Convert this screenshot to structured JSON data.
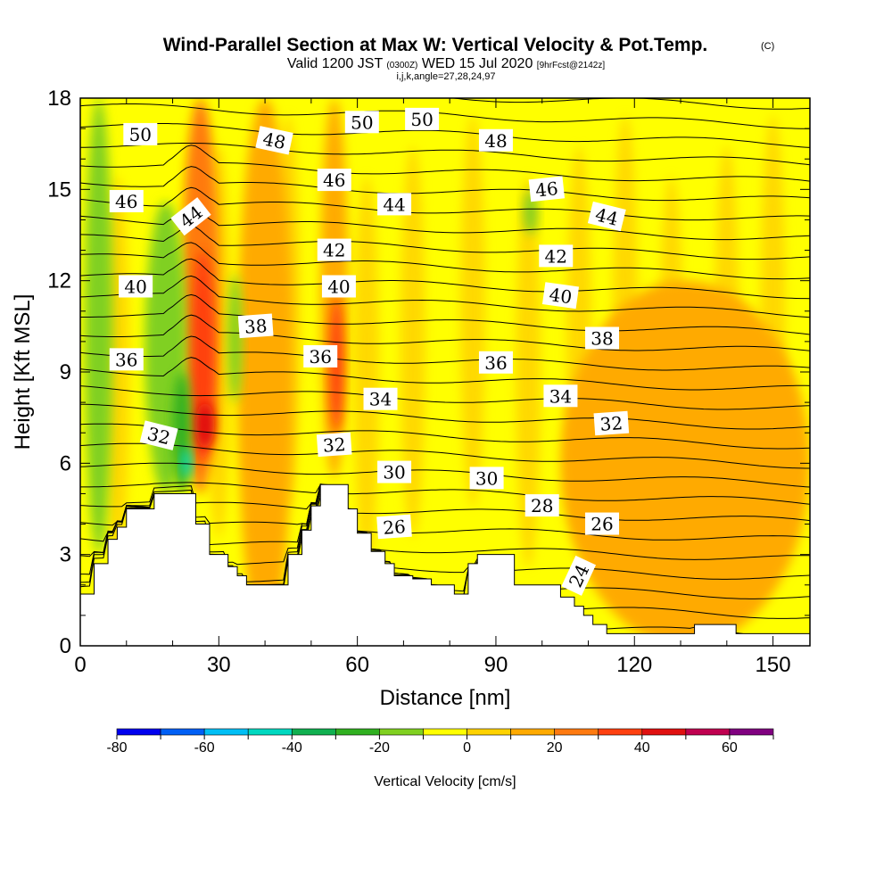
{
  "chart_data": {
    "type": "heatmap",
    "title": "Wind-Parallel Section at Max W: Vertical Velocity & Pot.Temp.",
    "title_tag": "(C)",
    "subtitle_parts": [
      "Valid 1200 JST ",
      "(0300Z)",
      " WED 15 Jul 2020 ",
      "[9hrFcst@2142z]"
    ],
    "subtitle2": "i,j,k,angle=27,28,24,97",
    "xlabel": "Distance [nm]",
    "ylabel": "Height [Kft MSL]",
    "xlim": [
      0,
      158
    ],
    "ylim": [
      0,
      18
    ],
    "xticks": [
      "0",
      "30",
      "60",
      "90",
      "120",
      "150"
    ],
    "yticks": [
      "0",
      "3",
      "6",
      "9",
      "12",
      "15",
      "18"
    ],
    "colorbar": {
      "label": "Vertical Velocity [cm/s]",
      "bounds": [
        -80,
        70
      ],
      "tick_values": [
        "-80",
        "-60",
        "-40",
        "-20",
        "0",
        "20",
        "40",
        "60"
      ],
      "colors": [
        "#0000ee",
        "#005ff5",
        "#00bff5",
        "#00d8c0",
        "#10b050",
        "#30b020",
        "#80d020",
        "#ffff00",
        "#ffd200",
        "#ffaa00",
        "#ff7a10",
        "#ff4010",
        "#e01010",
        "#c00050",
        "#800080"
      ]
    },
    "background_level_color": "#ffff00",
    "updraft_regions": [
      {
        "x": [
          34,
          46
        ],
        "y": [
          0,
          18
        ],
        "vv_cm_s": 10
      },
      {
        "x": [
          22,
          30
        ],
        "y": [
          5,
          18
        ],
        "vv_cm_s": 20
      },
      {
        "x": [
          24,
          29
        ],
        "y": [
          6,
          13
        ],
        "vv_cm_s": 35
      },
      {
        "x": [
          25,
          29
        ],
        "y": [
          6.5,
          8
        ],
        "vv_cm_s": 45
      },
      {
        "x": [
          52,
          58
        ],
        "y": [
          5.5,
          18
        ],
        "vv_cm_s": 15
      },
      {
        "x": [
          54,
          57
        ],
        "y": [
          7,
          11.5
        ],
        "vv_cm_s": 35
      },
      {
        "x": [
          104,
          158
        ],
        "y": [
          0,
          12
        ],
        "vv_cm_s": 10
      }
    ],
    "downdraft_regions": [
      {
        "x": [
          1,
          7
        ],
        "y": [
          3,
          18
        ],
        "vv_cm_s": -15
      },
      {
        "x": [
          14,
          23
        ],
        "y": [
          5,
          14.6
        ],
        "vv_cm_s": -15
      },
      {
        "x": [
          20,
          24
        ],
        "y": [
          5,
          9
        ],
        "vv_cm_s": -30
      },
      {
        "x": [
          22,
          24
        ],
        "y": [
          5.5,
          6.5
        ],
        "vv_cm_s": -45
      },
      {
        "x": [
          32,
          35
        ],
        "y": [
          8,
          12.2
        ],
        "vv_cm_s": -15
      },
      {
        "x": [
          96,
          99
        ],
        "y": [
          13.5,
          15
        ],
        "vv_cm_s": -15
      }
    ],
    "terrain_top_kft": [
      [
        0,
        1.7
      ],
      [
        3,
        1.7
      ],
      [
        3,
        2.7
      ],
      [
        6,
        2.7
      ],
      [
        6,
        3.5
      ],
      [
        8,
        3.5
      ],
      [
        8,
        3.9
      ],
      [
        10,
        3.9
      ],
      [
        10,
        4.5
      ],
      [
        16,
        4.5
      ],
      [
        16,
        5.0
      ],
      [
        25,
        5.0
      ],
      [
        25,
        4.0
      ],
      [
        28,
        4.0
      ],
      [
        28,
        3.0
      ],
      [
        32,
        3.0
      ],
      [
        32,
        2.6
      ],
      [
        34,
        2.6
      ],
      [
        34,
        2.3
      ],
      [
        36,
        2.3
      ],
      [
        36,
        2.0
      ],
      [
        45,
        2.0
      ],
      [
        45,
        3.0
      ],
      [
        48,
        3.0
      ],
      [
        48,
        3.8
      ],
      [
        50,
        3.8
      ],
      [
        50,
        4.6
      ],
      [
        52,
        4.6
      ],
      [
        52,
        5.3
      ],
      [
        58,
        5.3
      ],
      [
        58,
        4.5
      ],
      [
        60,
        4.5
      ],
      [
        60,
        3.7
      ],
      [
        63,
        3.7
      ],
      [
        63,
        3.1
      ],
      [
        66,
        3.1
      ],
      [
        66,
        2.7
      ],
      [
        68,
        2.7
      ],
      [
        68,
        2.3
      ],
      [
        72,
        2.3
      ],
      [
        72,
        2.2
      ],
      [
        76,
        2.2
      ],
      [
        76,
        2.0
      ],
      [
        81,
        2.0
      ],
      [
        81,
        1.7
      ],
      [
        84,
        1.7
      ],
      [
        84,
        2.7
      ],
      [
        86,
        2.7
      ],
      [
        86,
        3.0
      ],
      [
        94,
        3.0
      ],
      [
        94,
        2.0
      ],
      [
        104,
        2.0
      ],
      [
        104,
        1.6
      ],
      [
        107,
        1.6
      ],
      [
        107,
        1.3
      ],
      [
        109,
        1.3
      ],
      [
        109,
        1.0
      ],
      [
        111,
        1.0
      ],
      [
        111,
        0.7
      ],
      [
        114,
        0.7
      ],
      [
        114,
        0.4
      ],
      [
        133,
        0.4
      ],
      [
        133,
        0.7
      ],
      [
        142,
        0.7
      ],
      [
        142,
        0.4
      ],
      [
        158,
        0.4
      ]
    ],
    "theta_contour_labels": [
      {
        "text": "50",
        "x": 13,
        "y": 16.8,
        "rot": 0
      },
      {
        "text": "50",
        "x": 61,
        "y": 17.2,
        "rot": 0
      },
      {
        "text": "50",
        "x": 74,
        "y": 17.3,
        "rot": 0
      },
      {
        "text": "48",
        "x": 42,
        "y": 16.6,
        "rot": 12
      },
      {
        "text": "48",
        "x": 90,
        "y": 16.6,
        "rot": 0
      },
      {
        "text": "46",
        "x": 10,
        "y": 14.6,
        "rot": 0
      },
      {
        "text": "46",
        "x": 55,
        "y": 15.3,
        "rot": 0
      },
      {
        "text": "46",
        "x": 101,
        "y": 15.0,
        "rot": -6
      },
      {
        "text": "44",
        "x": 24,
        "y": 14.1,
        "rot": -38
      },
      {
        "text": "44",
        "x": 68,
        "y": 14.5,
        "rot": 0
      },
      {
        "text": "44",
        "x": 114,
        "y": 14.1,
        "rot": 14
      },
      {
        "text": "42",
        "x": 55,
        "y": 13.0,
        "rot": 0
      },
      {
        "text": "42",
        "x": 103,
        "y": 12.8,
        "rot": 0
      },
      {
        "text": "40",
        "x": 12,
        "y": 11.8,
        "rot": 0
      },
      {
        "text": "40",
        "x": 56,
        "y": 11.8,
        "rot": 0
      },
      {
        "text": "40",
        "x": 104,
        "y": 11.5,
        "rot": 8
      },
      {
        "text": "38",
        "x": 38,
        "y": 10.5,
        "rot": -4
      },
      {
        "text": "38",
        "x": 113,
        "y": 10.1,
        "rot": 0
      },
      {
        "text": "36",
        "x": 10,
        "y": 9.4,
        "rot": 0
      },
      {
        "text": "36",
        "x": 52,
        "y": 9.5,
        "rot": 0
      },
      {
        "text": "36",
        "x": 90,
        "y": 9.3,
        "rot": 0
      },
      {
        "text": "34",
        "x": 65,
        "y": 8.1,
        "rot": 0
      },
      {
        "text": "34",
        "x": 104,
        "y": 8.2,
        "rot": 0
      },
      {
        "text": "32",
        "x": 17,
        "y": 6.9,
        "rot": 14
      },
      {
        "text": "32",
        "x": 55,
        "y": 6.6,
        "rot": -4
      },
      {
        "text": "32",
        "x": 115,
        "y": 7.3,
        "rot": -4
      },
      {
        "text": "30",
        "x": 68,
        "y": 5.7,
        "rot": 0
      },
      {
        "text": "30",
        "x": 88,
        "y": 5.5,
        "rot": 0
      },
      {
        "text": "28",
        "x": 100,
        "y": 4.6,
        "rot": 0
      },
      {
        "text": "26",
        "x": 68,
        "y": 3.9,
        "rot": -4
      },
      {
        "text": "26",
        "x": 113,
        "y": 4.0,
        "rot": 0
      },
      {
        "text": "24",
        "x": 108,
        "y": 2.3,
        "rot": -65
      }
    ]
  }
}
